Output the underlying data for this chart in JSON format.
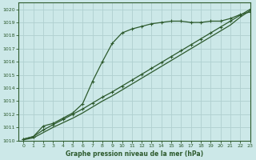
{
  "bg_color": "#cce8e8",
  "grid_color": "#b0d0d0",
  "line_color": "#2d5a2d",
  "text_color": "#2d5a2d",
  "xlabel": "Graphe pression niveau de la mer (hPa)",
  "xlim": [
    -0.5,
    23
  ],
  "ylim": [
    1010,
    1020.5
  ],
  "yticks": [
    1010,
    1011,
    1012,
    1013,
    1014,
    1015,
    1016,
    1017,
    1018,
    1019,
    1020
  ],
  "xticks": [
    0,
    1,
    2,
    3,
    4,
    5,
    6,
    7,
    8,
    9,
    10,
    11,
    12,
    13,
    14,
    15,
    16,
    17,
    18,
    19,
    20,
    21,
    22,
    23
  ],
  "s1_x": [
    0,
    1,
    2,
    3,
    4,
    5,
    6,
    7,
    8,
    9,
    10,
    11,
    12,
    13,
    14,
    15,
    16,
    17,
    18,
    19,
    20,
    21,
    22,
    23
  ],
  "s1_y": [
    1010.1,
    1010.3,
    1011.1,
    1011.3,
    1011.7,
    1012.1,
    1012.8,
    1014.5,
    1016.0,
    1017.4,
    1018.2,
    1018.5,
    1018.7,
    1018.9,
    1019.0,
    1019.1,
    1019.1,
    1019.0,
    1019.0,
    1019.1,
    1019.1,
    1019.3,
    1019.6,
    1019.8
  ],
  "s2_x": [
    0,
    1,
    2,
    3,
    4,
    5,
    6,
    7,
    8,
    9,
    10,
    11,
    12,
    13,
    14,
    15,
    16,
    17,
    18,
    19,
    20,
    21,
    22,
    23
  ],
  "s2_y": [
    1010.05,
    1010.2,
    1010.6,
    1011.0,
    1011.35,
    1011.7,
    1012.1,
    1012.55,
    1013.0,
    1013.4,
    1013.85,
    1014.3,
    1014.75,
    1015.2,
    1015.65,
    1016.1,
    1016.55,
    1017.0,
    1017.45,
    1017.9,
    1018.35,
    1018.8,
    1019.4,
    1019.9
  ],
  "s3_x": [
    0,
    1,
    2,
    3,
    4,
    5,
    6,
    7,
    8,
    9,
    10,
    11,
    12,
    13,
    14,
    15,
    16,
    17,
    18,
    19,
    20,
    21,
    22,
    23
  ],
  "s3_y": [
    1010.1,
    1010.3,
    1010.8,
    1011.2,
    1011.6,
    1012.0,
    1012.4,
    1012.85,
    1013.3,
    1013.7,
    1014.15,
    1014.6,
    1015.05,
    1015.5,
    1015.95,
    1016.4,
    1016.85,
    1017.3,
    1017.75,
    1018.2,
    1018.65,
    1019.1,
    1019.55,
    1020.0
  ]
}
